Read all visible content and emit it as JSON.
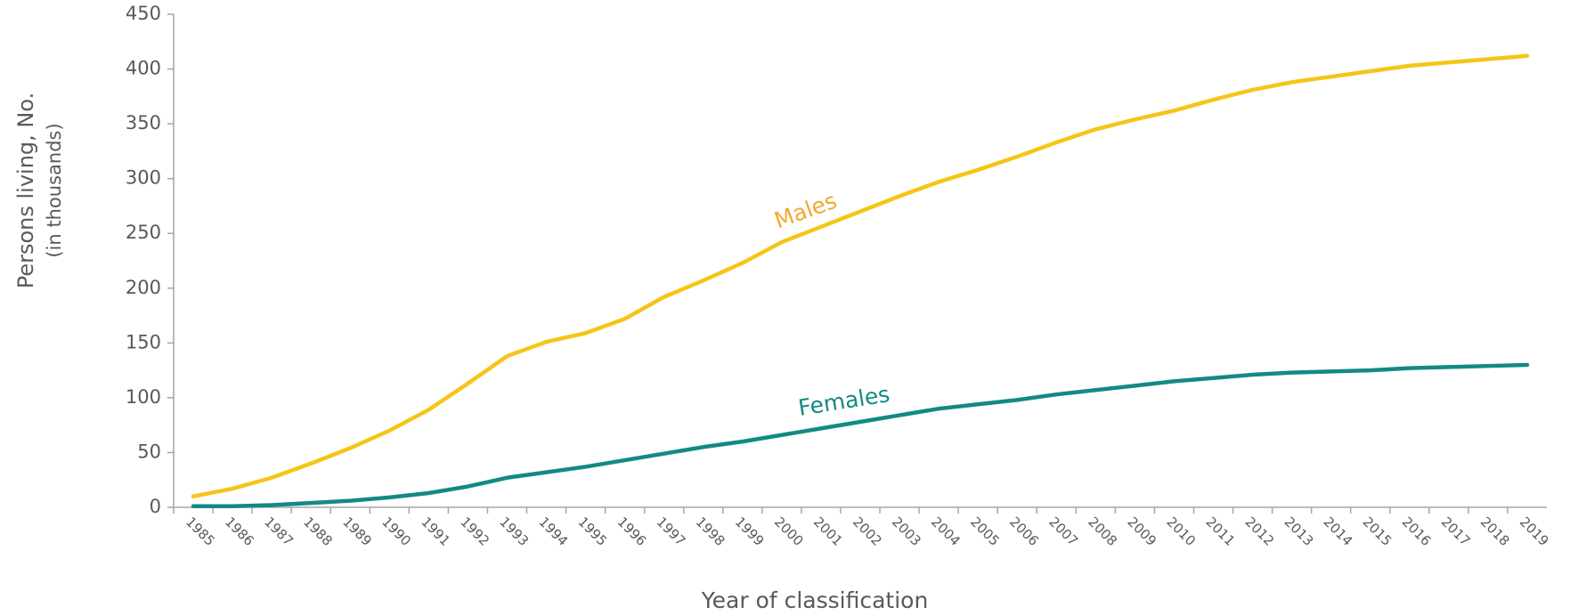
{
  "chart_data": {
    "type": "line",
    "x_label": "Year of classification",
    "y_label": [
      "Persons living, No.",
      "(in thousands)"
    ],
    "categories": [
      "1985",
      "1986",
      "1987",
      "1988",
      "1989",
      "1990",
      "1991",
      "1992",
      "1993",
      "1994",
      "1995",
      "1996",
      "1997",
      "1998",
      "1999",
      "2000",
      "2001",
      "2002",
      "2003",
      "2004",
      "2005",
      "2006",
      "2007",
      "2008",
      "2009",
      "2010",
      "2011",
      "2012",
      "2013",
      "2014",
      "2015",
      "2016",
      "2017",
      "2018",
      "2019"
    ],
    "series": [
      {
        "name": "Males",
        "color": "#f5c518",
        "label_color": "#f0a830",
        "values": [
          10,
          17,
          27,
          40,
          54,
          70,
          89,
          113,
          138,
          151,
          159,
          172,
          192,
          207,
          223,
          242,
          256,
          270,
          284,
          297,
          308,
          320,
          333,
          345,
          354,
          362,
          372,
          381,
          388,
          393,
          398,
          403,
          406,
          409,
          412
        ]
      },
      {
        "name": "Females",
        "color": "#128a84",
        "label_color": "#128a84",
        "values": [
          1,
          1,
          2,
          4,
          6,
          9,
          13,
          19,
          27,
          32,
          37,
          43,
          49,
          55,
          60,
          66,
          72,
          78,
          84,
          90,
          94,
          98,
          103,
          107,
          111,
          115,
          118,
          121,
          123,
          124,
          125,
          127,
          128,
          129,
          130
        ]
      }
    ],
    "ylim": [
      0,
      450
    ],
    "yticks": [
      0,
      50,
      100,
      150,
      200,
      250,
      300,
      350,
      400,
      450
    ],
    "grid": false
  }
}
